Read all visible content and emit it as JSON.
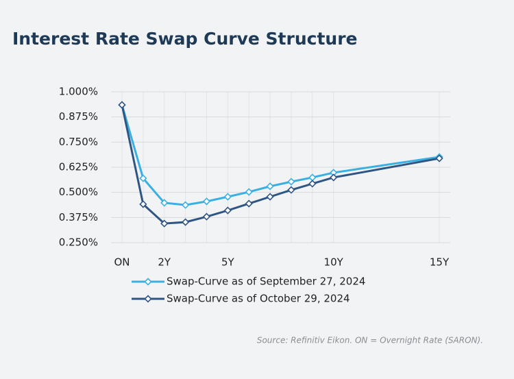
{
  "chart_data": {
    "type": "line",
    "title": "Interest Rate Swap Curve Structure",
    "note": "Source: Refinitiv Eikon. ON = Overnight Rate (SARON).",
    "x": [
      0,
      1,
      2,
      3,
      4,
      5,
      6,
      7,
      8,
      9,
      10,
      15
    ],
    "xlim": [
      0,
      15
    ],
    "xticks": [
      {
        "value": 0,
        "label": "ON"
      },
      {
        "value": 2,
        "label": "2Y"
      },
      {
        "value": 5,
        "label": "5Y"
      },
      {
        "value": 10,
        "label": "10Y"
      },
      {
        "value": 15,
        "label": "15Y"
      }
    ],
    "ylim": [
      0.25,
      1.0
    ],
    "yticks": [
      {
        "value": 0.25,
        "label": "0.250%"
      },
      {
        "value": 0.375,
        "label": "0.375%"
      },
      {
        "value": 0.5,
        "label": "0.500%"
      },
      {
        "value": 0.625,
        "label": "0.625%"
      },
      {
        "value": 0.75,
        "label": "0.750%"
      },
      {
        "value": 0.875,
        "label": "0.875%"
      },
      {
        "value": 1.0,
        "label": "1.000%"
      }
    ],
    "grid": true,
    "series": [
      {
        "name": "Swap-Curve as of September 27, 2024",
        "color": "#3ab0e2",
        "values": [
          0.935,
          0.57,
          0.448,
          0.437,
          0.455,
          0.478,
          0.502,
          0.53,
          0.553,
          0.574,
          0.598,
          0.676
        ]
      },
      {
        "name": "Swap-Curve as of October 29, 2024",
        "color": "#2f5683",
        "values": [
          0.935,
          0.441,
          0.345,
          0.352,
          0.379,
          0.41,
          0.444,
          0.478,
          0.512,
          0.543,
          0.574,
          0.669
        ]
      }
    ]
  }
}
